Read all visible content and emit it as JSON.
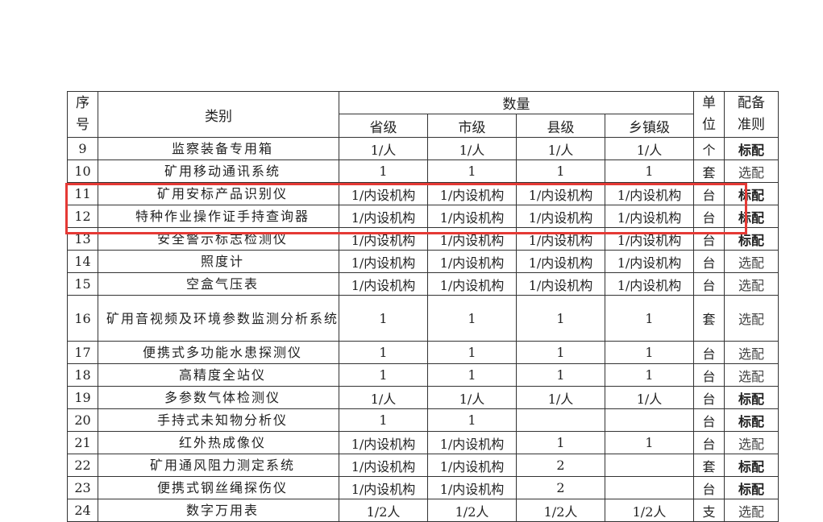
{
  "header": {
    "seq": "序号",
    "category": "类别",
    "quantity": "数量",
    "levels": [
      "省级",
      "市级",
      "县级",
      "乡镇级"
    ],
    "unit": "单位",
    "rule": "配备准则"
  },
  "rows": [
    {
      "no": "9",
      "name": "监察装备专用箱",
      "q": [
        "1/人",
        "1/人",
        "1/人",
        "1/人"
      ],
      "unit": "个",
      "rule": "标配"
    },
    {
      "no": "10",
      "name": "矿用移动通讯系统",
      "q": [
        "1",
        "1",
        "1",
        "1"
      ],
      "unit": "套",
      "rule": "选配"
    },
    {
      "no": "11",
      "name": "矿用安标产品识别仪",
      "q": [
        "1/内设机构",
        "1/内设机构",
        "1/内设机构",
        "1/内设机构"
      ],
      "unit": "台",
      "rule": "标配"
    },
    {
      "no": "12",
      "name": "特种作业操作证手持查询器",
      "q": [
        "1/内设机构",
        "1/内设机构",
        "1/内设机构",
        "1/内设机构"
      ],
      "unit": "台",
      "rule": "标配"
    },
    {
      "no": "13",
      "name": "安全警示标志检测仪",
      "q": [
        "1/内设机构",
        "1/内设机构",
        "1/内设机构",
        "1/内设机构"
      ],
      "unit": "台",
      "rule": "标配"
    },
    {
      "no": "14",
      "name": "照度计",
      "q": [
        "1/内设机构",
        "1/内设机构",
        "1/内设机构",
        "1/内设机构"
      ],
      "unit": "台",
      "rule": "选配"
    },
    {
      "no": "15",
      "name": "空盒气压表",
      "q": [
        "1/内设机构",
        "1/内设机构",
        "1/内设机构",
        "1/内设机构"
      ],
      "unit": "台",
      "rule": "选配"
    },
    {
      "no": "16",
      "name": "矿用音视频及环境参数监测分析系统",
      "q": [
        "1",
        "1",
        "1",
        "1"
      ],
      "unit": "套",
      "rule": "选配"
    },
    {
      "no": "17",
      "name": "便携式多功能水患探测仪",
      "q": [
        "1",
        "1",
        "1",
        "1"
      ],
      "unit": "台",
      "rule": "选配"
    },
    {
      "no": "18",
      "name": "高精度全站仪",
      "q": [
        "1",
        "1",
        "1",
        "1"
      ],
      "unit": "台",
      "rule": "选配"
    },
    {
      "no": "19",
      "name": "多参数气体检测仪",
      "q": [
        "1/人",
        "1/人",
        "1/人",
        "1/人"
      ],
      "unit": "台",
      "rule": "标配"
    },
    {
      "no": "20",
      "name": "手持式未知物分析仪",
      "q": [
        "1",
        "1",
        "",
        ""
      ],
      "unit": "台",
      "rule": "标配"
    },
    {
      "no": "21",
      "name": "红外热成像仪",
      "q": [
        "1/内设机构",
        "1/内设机构",
        "1",
        "1"
      ],
      "unit": "台",
      "rule": "选配"
    },
    {
      "no": "22",
      "name": "矿用通风阻力测定系统",
      "q": [
        "1/内设机构",
        "1/内设机构",
        "2",
        ""
      ],
      "unit": "套",
      "rule": "标配"
    },
    {
      "no": "23",
      "name": "便携式钢丝绳探伤仪",
      "q": [
        "1/内设机构",
        "1/内设机构",
        "2",
        ""
      ],
      "unit": "台",
      "rule": "标配"
    },
    {
      "no": "24",
      "name": "数字万用表",
      "q": [
        "1/2人",
        "1/2人",
        "1/2人",
        "1/2人"
      ],
      "unit": "支",
      "rule": "选配"
    }
  ],
  "highlight": {
    "rows": [
      "11",
      "12"
    ],
    "color": "#e53935"
  },
  "rule_styles": {
    "标配": "bold",
    "选配": "normal"
  }
}
